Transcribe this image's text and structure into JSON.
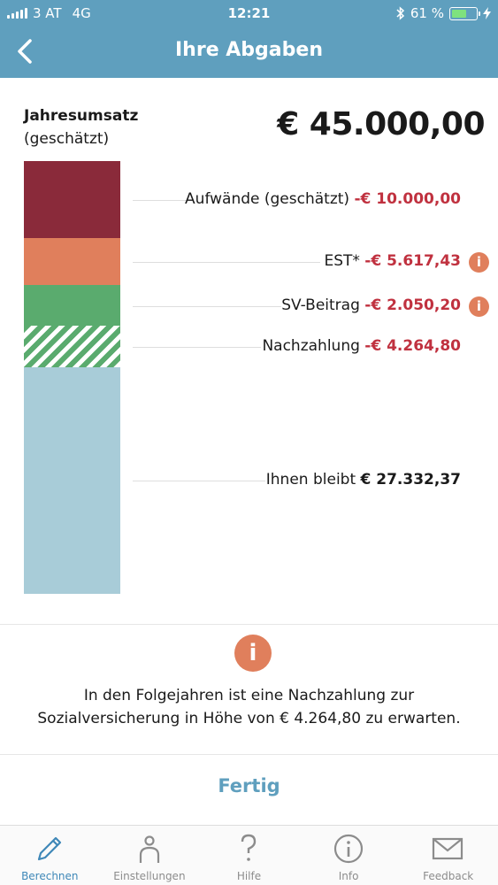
{
  "status": {
    "carrier": "3 AT",
    "network": "4G",
    "time": "12:21",
    "battery": "61 %",
    "battery_level": 0.61
  },
  "nav": {
    "title": "Ihre Abgaben",
    "back_icon": "chevron-left-icon"
  },
  "revenue": {
    "label_bold": "Jahresumsatz",
    "label_sub": "(geschätzt)",
    "value": "€ 45.000,00"
  },
  "rows": {
    "aufwand": {
      "label": "Aufwände (geschätzt)",
      "value": "-€ 10.000,00"
    },
    "est": {
      "label": "EST*",
      "value": "-€ 5.617,43",
      "icon": "info-icon"
    },
    "sv": {
      "label": "SV-Beitrag",
      "value": "-€ 2.050,20",
      "icon": "info-icon"
    },
    "nach": {
      "label": "Nachzahlung",
      "value": "-€ 4.264,80"
    },
    "bleibt": {
      "label": "Ihnen bleibt",
      "value": "€ 27.332,37"
    }
  },
  "colors": {
    "header": "#5f9fbe",
    "aufwand": "#8a2a3a",
    "est": "#e07f5c",
    "sv": "#5aab6e",
    "bleibt": "#a8ccd8",
    "negative": "#c0313f"
  },
  "notice": {
    "line1": "In den Folgejahren ist eine Nachzahlung zur",
    "line2": "Sozialversicherung in Höhe von € 4.264,80 zu erwarten."
  },
  "done_label": "Fertig",
  "tabs": [
    {
      "label": "Berechnen",
      "icon": "pencil-icon",
      "active": true
    },
    {
      "label": "Einstellungen",
      "icon": "person-icon"
    },
    {
      "label": "Hilfe",
      "icon": "question-icon"
    },
    {
      "label": "Info",
      "icon": "info-icon"
    },
    {
      "label": "Feedback",
      "icon": "envelope-icon"
    }
  ]
}
